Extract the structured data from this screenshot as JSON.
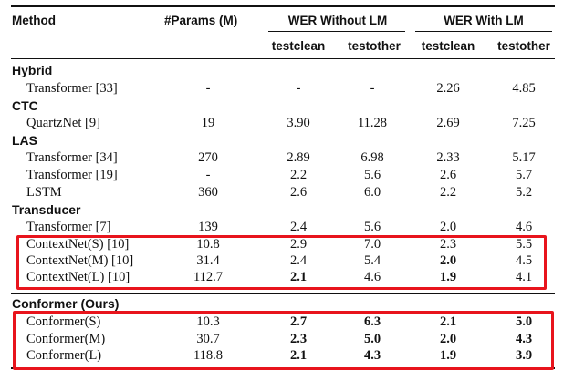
{
  "header": {
    "method": "Method",
    "params": "#Params (M)",
    "wer_without_lm": "WER Without LM",
    "wer_with_lm": "WER With LM",
    "sub": [
      "testclean",
      "testother",
      "testclean",
      "testother"
    ]
  },
  "groups": [
    {
      "name": "Hybrid",
      "rows": [
        {
          "method": "Transformer [33]",
          "params": "-",
          "v": [
            "-",
            "-",
            "2.26",
            "4.85"
          ],
          "bold": [
            false,
            false,
            false,
            false
          ]
        }
      ]
    },
    {
      "name": "CTC",
      "rows": [
        {
          "method": "QuartzNet  [9]",
          "params": "19",
          "v": [
            "3.90",
            "11.28",
            "2.69",
            "7.25"
          ],
          "bold": [
            false,
            false,
            false,
            false
          ]
        }
      ]
    },
    {
      "name": "LAS",
      "rows": [
        {
          "method": "Transformer [34]",
          "params": "270",
          "v": [
            "2.89",
            "6.98",
            "2.33",
            "5.17"
          ],
          "bold": [
            false,
            false,
            false,
            false
          ]
        },
        {
          "method": "Transformer [19]",
          "params": "-",
          "v": [
            "2.2",
            "5.6",
            "2.6",
            "5.7"
          ],
          "bold": [
            false,
            false,
            false,
            false
          ]
        },
        {
          "method": "LSTM",
          "params": "360",
          "v": [
            "2.6",
            "6.0",
            "2.2",
            "5.2"
          ],
          "bold": [
            false,
            false,
            false,
            false
          ]
        }
      ]
    },
    {
      "name": "Transducer",
      "rows": [
        {
          "method": "Transformer [7]",
          "params": "139",
          "v": [
            "2.4",
            "5.6",
            "2.0",
            "4.6"
          ],
          "bold": [
            false,
            false,
            false,
            false
          ]
        },
        {
          "method": "ContextNet(S) [10]",
          "params": "10.8",
          "v": [
            "2.9",
            "7.0",
            "2.3",
            "5.5"
          ],
          "bold": [
            false,
            false,
            false,
            false
          ]
        },
        {
          "method": "ContextNet(M) [10]",
          "params": "31.4",
          "v": [
            "2.4",
            "5.4",
            "2.0",
            "4.5"
          ],
          "bold": [
            false,
            false,
            true,
            false
          ]
        },
        {
          "method": "ContextNet(L) [10]",
          "params": "112.7",
          "v": [
            "2.1",
            "4.6",
            "1.9",
            "4.1"
          ],
          "bold": [
            true,
            false,
            true,
            false
          ]
        }
      ]
    },
    {
      "name": "Conformer (Ours)",
      "rows": [
        {
          "method": "Conformer(S)",
          "params": "10.3",
          "v": [
            "2.7",
            "6.3",
            "2.1",
            "5.0"
          ],
          "bold": [
            true,
            true,
            true,
            true
          ]
        },
        {
          "method": "Conformer(M)",
          "params": "30.7",
          "v": [
            "2.3",
            "5.0",
            "2.0",
            "4.3"
          ],
          "bold": [
            true,
            true,
            true,
            true
          ]
        },
        {
          "method": "Conformer(L)",
          "params": "118.8",
          "v": [
            "2.1",
            "4.3",
            "1.9",
            "3.9"
          ],
          "bold": [
            true,
            true,
            true,
            true
          ]
        }
      ]
    }
  ],
  "highlight_color": "#e8141c"
}
